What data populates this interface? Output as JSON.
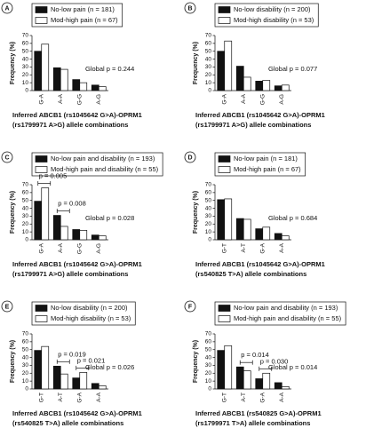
{
  "chart_data": [
    {
      "type": "bar",
      "panel_label": "A",
      "categories": [
        "G-A",
        "A-A",
        "G-G",
        "A-G"
      ],
      "series": [
        {
          "name": "No-low pain (n = 181)",
          "color": "#111111",
          "values": [
            50,
            29,
            14,
            7
          ]
        },
        {
          "name": "Mod-high pain (n = 67)",
          "color": "#ffffff",
          "values": [
            59,
            27,
            10,
            5
          ]
        }
      ],
      "ylim": [
        0,
        70
      ],
      "yticks": [
        0,
        10,
        20,
        30,
        40,
        50,
        60,
        70
      ],
      "ylabel": "Frequency (%)",
      "xlabel": [
        "Inferred ABCB1 (rs1045642 G>A)-OPRM1",
        "(rs1799971 A>G) allele combinations"
      ],
      "global_p": "Global p = 0.244",
      "annotations": []
    },
    {
      "type": "bar",
      "panel_label": "B",
      "categories": [
        "G-A",
        "A-A",
        "G-G",
        "A-G"
      ],
      "series": [
        {
          "name": "No-low disability (n = 200)",
          "color": "#111111",
          "values": [
            50,
            31,
            12,
            6
          ]
        },
        {
          "name": "Mod-high disability (n = 53)",
          "color": "#ffffff",
          "values": [
            63,
            17,
            13,
            7
          ]
        }
      ],
      "ylim": [
        0,
        70
      ],
      "yticks": [
        0,
        10,
        20,
        30,
        40,
        50,
        60,
        70
      ],
      "ylabel": "Frequency (%)",
      "xlabel": [
        "Inferred ABCB1 (rs1045642 G>A)-OPRM1",
        "(rs1799971 A>G) allele combinations"
      ],
      "global_p": "Global p = 0.077",
      "annotations": []
    },
    {
      "type": "bar",
      "panel_label": "C",
      "categories": [
        "G-A",
        "A-A",
        "G-G",
        "A-G"
      ],
      "series": [
        {
          "name": "No-low pain and disability (n = 193)",
          "color": "#111111",
          "values": [
            49,
            31,
            13,
            6
          ]
        },
        {
          "name": "Mod-high pain and disability (n = 55)",
          "color": "#ffffff",
          "values": [
            66,
            17,
            12,
            5
          ]
        }
      ],
      "ylim": [
        0,
        70
      ],
      "yticks": [
        0,
        10,
        20,
        30,
        40,
        50,
        60,
        70
      ],
      "ylabel": "Frequency (%)",
      "xlabel": [
        "Inferred ABCB1 (rs1045642 G>A)-OPRM1",
        "(rs1799971 A>G) allele combinations"
      ],
      "global_p": "Global p = 0.028",
      "annotations": [
        "p = 0.005",
        "p = 0.008"
      ]
    },
    {
      "type": "bar",
      "panel_label": "D",
      "categories": [
        "G-T",
        "A-T",
        "G-A",
        "A-A"
      ],
      "series": [
        {
          "name": "No-low pain (n = 181)",
          "color": "#111111",
          "values": [
            51,
            27,
            14,
            8
          ]
        },
        {
          "name": "Mod-high pain (n = 67)",
          "color": "#ffffff",
          "values": [
            52,
            26,
            16,
            5
          ]
        }
      ],
      "ylim": [
        0,
        70
      ],
      "yticks": [
        0,
        10,
        20,
        30,
        40,
        50,
        60,
        70
      ],
      "ylabel": "Frequency (%)",
      "xlabel": [
        "Inferred ABCB1 (rs1045642 G>A)-OPRM1",
        "(rs540825 T>A) allele combinations"
      ],
      "global_p": "Global p = 0.684",
      "annotations": []
    },
    {
      "type": "bar",
      "panel_label": "E",
      "categories": [
        "G-T",
        "A-T",
        "G-A",
        "A-A"
      ],
      "series": [
        {
          "name": "No-low disability (n = 200)",
          "color": "#111111",
          "values": [
            49,
            29,
            14,
            7
          ]
        },
        {
          "name": "Mod-high disability (n = 53)",
          "color": "#ffffff",
          "values": [
            54,
            19,
            21,
            4
          ]
        }
      ],
      "ylim": [
        0,
        70
      ],
      "yticks": [
        0,
        10,
        20,
        30,
        40,
        50,
        60,
        70
      ],
      "ylabel": "Frequency (%)",
      "xlabel": [
        "Inferred ABCB1 (rs1045642 G>A)-OPRM1",
        "(rs540825 T>A) allele combinations"
      ],
      "global_p": "Global p = 0.026",
      "annotations": [
        "p = 0.019",
        "p = 0.021"
      ]
    },
    {
      "type": "bar",
      "panel_label": "F",
      "categories": [
        "G-T",
        "A-T",
        "G-A",
        "A-A"
      ],
      "series": [
        {
          "name": "No-low pain and disability (n = 193)",
          "color": "#111111",
          "values": [
            49,
            28,
            13,
            8
          ]
        },
        {
          "name": "Mod-high pain and disability (n = 55)",
          "color": "#ffffff",
          "values": [
            55,
            23,
            20,
            3
          ]
        }
      ],
      "ylim": [
        0,
        70
      ],
      "yticks": [
        0,
        10,
        20,
        30,
        40,
        50,
        60,
        70
      ],
      "ylabel": "Frequency (%)",
      "xlabel": [
        "Inferred ABCB1 (rs540825 G>A)-OPRM1",
        "(rs1799971 T>A) allele combinations"
      ],
      "global_p": "Global p = 0.014",
      "annotations": [
        "p = 0.014",
        "p = 0.030"
      ]
    }
  ]
}
